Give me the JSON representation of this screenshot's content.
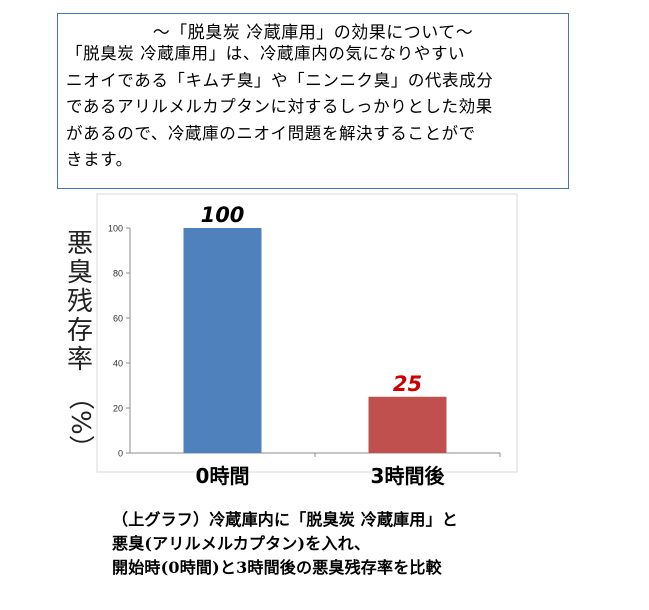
{
  "info_box": {
    "title": "〜「脱臭炭 冷蔵庫用」の効果について〜",
    "lines": [
      "「脱臭炭 冷蔵庫用」は、冷蔵庫内の気になりやすい",
      "ニオイである「キムチ臭」や「ニンニク臭」の代表成分",
      "であるアリルメルカプタンに対するしっかりとした効果",
      "があるので、冷蔵庫のニオイ問題を解決することがで",
      "きます。"
    ]
  },
  "chart_data": {
    "type": "bar",
    "categories": [
      "0時間",
      "3時間後"
    ],
    "values": [
      100,
      25
    ],
    "data_labels": [
      "100",
      "25"
    ],
    "ylabel_chars": [
      "悪",
      "臭",
      "残",
      "存",
      "率"
    ],
    "ylabel_unit": "（%）",
    "ylim": [
      0,
      100
    ],
    "yticks": [
      0,
      20,
      40,
      60,
      80,
      100
    ],
    "ytick_labels": [
      "0",
      "20",
      "40",
      "60",
      "80",
      "100"
    ],
    "grid": false,
    "legend": "none",
    "colors": [
      "#4f81bd",
      "#c0504d"
    ],
    "label_colors": [
      "#000000",
      "#cc0000"
    ]
  },
  "caption": {
    "lines": [
      "（上グラフ）冷蔵庫内に「脱臭炭 冷蔵庫用」と",
      "悪臭(アリルメルカプタン)を入れ、",
      "開始時(0時間)と3時間後の悪臭残存率を比較"
    ]
  }
}
